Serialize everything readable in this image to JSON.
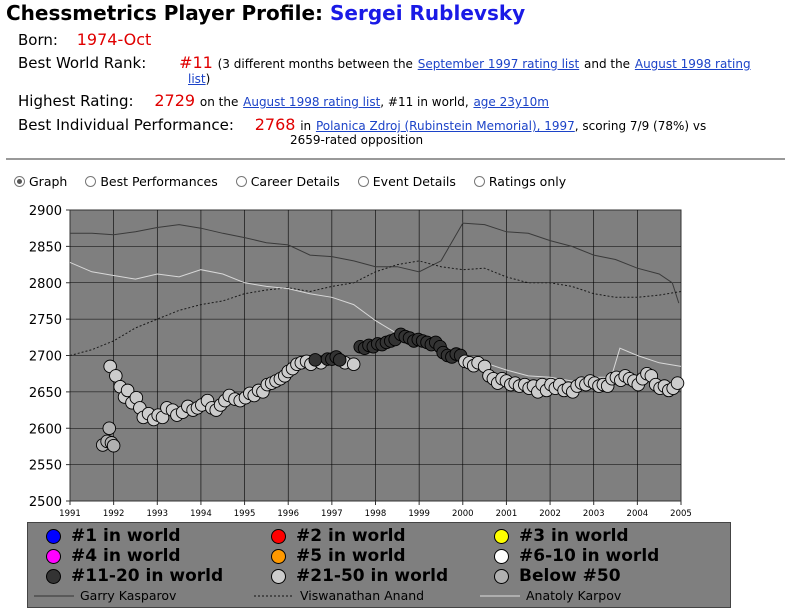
{
  "header": {
    "title_prefix": "Chessmetrics Player Profile:",
    "player_name": "Sergei Rublevsky"
  },
  "born": {
    "label": "Born:",
    "value": "1974-Oct"
  },
  "best_world_rank": {
    "label": "Best World Rank:",
    "value": "#11",
    "text1": "(3 different months between the",
    "link1": "September 1997 rating list",
    "text2": "and the",
    "link2a": "August 1998 rating",
    "link2b": "list",
    "text3": ")"
  },
  "highest_rating": {
    "label": "Highest Rating:",
    "value": "2729",
    "text1": "on the",
    "link1": "August 1998 rating list",
    "text2": ", #11 in world,",
    "link2": "age 23y10m"
  },
  "best_performance": {
    "label": "Best Individual Performance:",
    "value": "2768",
    "text1": "in",
    "link1": "Polanica Zdroj (Rubinstein Memorial), 1997",
    "text2": ", scoring 7/9 (78%) vs",
    "text3": "2659-rated opposition"
  },
  "tabs": [
    {
      "label": "Graph",
      "selected": true
    },
    {
      "label": "Best Performances",
      "selected": false
    },
    {
      "label": "Career Details",
      "selected": false
    },
    {
      "label": "Event Details",
      "selected": false
    },
    {
      "label": "Ratings only",
      "selected": false
    }
  ],
  "chart_data": {
    "type": "scatter",
    "ylim": [
      2500,
      2900
    ],
    "xlim": [
      1991,
      2005
    ],
    "y_ticks": [
      "2500",
      "2550",
      "2600",
      "2650",
      "2700",
      "2750",
      "2800",
      "2850",
      "2900"
    ],
    "x_ticks": [
      "1991",
      "1992",
      "1993",
      "1994",
      "1995",
      "1996",
      "1997",
      "1998",
      "1999",
      "2000",
      "2001",
      "2002",
      "2003",
      "2004",
      "2005"
    ],
    "plot_bg": "#7f7f7f",
    "grid": true,
    "points": [
      {
        "x": 1991.75,
        "y": 2577,
        "cat": "below50"
      },
      {
        "x": 1991.85,
        "y": 2582,
        "cat": "below50"
      },
      {
        "x": 1991.95,
        "y": 2580,
        "cat": "below50"
      },
      {
        "x": 1991.9,
        "y": 2600,
        "cat": "below50"
      },
      {
        "x": 1992.0,
        "y": 2576,
        "cat": "below50"
      },
      {
        "x": 1991.92,
        "y": 2685,
        "cat": "r21_50"
      },
      {
        "x": 1992.05,
        "y": 2672,
        "cat": "r21_50"
      },
      {
        "x": 1992.15,
        "y": 2657,
        "cat": "r21_50"
      },
      {
        "x": 1992.25,
        "y": 2643,
        "cat": "r21_50"
      },
      {
        "x": 1992.32,
        "y": 2652,
        "cat": "r21_50"
      },
      {
        "x": 1992.42,
        "y": 2635,
        "cat": "r21_50"
      },
      {
        "x": 1992.52,
        "y": 2642,
        "cat": "r21_50"
      },
      {
        "x": 1992.6,
        "y": 2628,
        "cat": "r21_50"
      },
      {
        "x": 1992.68,
        "y": 2615,
        "cat": "r21_50"
      },
      {
        "x": 1992.8,
        "y": 2620,
        "cat": "r21_50"
      },
      {
        "x": 1992.92,
        "y": 2612,
        "cat": "r21_50"
      },
      {
        "x": 1993.02,
        "y": 2618,
        "cat": "r21_50"
      },
      {
        "x": 1993.12,
        "y": 2615,
        "cat": "r21_50"
      },
      {
        "x": 1993.22,
        "y": 2628,
        "cat": "r21_50"
      },
      {
        "x": 1993.35,
        "y": 2625,
        "cat": "r21_50"
      },
      {
        "x": 1993.45,
        "y": 2618,
        "cat": "r21_50"
      },
      {
        "x": 1993.58,
        "y": 2622,
        "cat": "r21_50"
      },
      {
        "x": 1993.7,
        "y": 2630,
        "cat": "r21_50"
      },
      {
        "x": 1993.82,
        "y": 2625,
        "cat": "r21_50"
      },
      {
        "x": 1993.92,
        "y": 2628,
        "cat": "r21_50"
      },
      {
        "x": 1994.02,
        "y": 2632,
        "cat": "r21_50"
      },
      {
        "x": 1994.15,
        "y": 2638,
        "cat": "r21_50"
      },
      {
        "x": 1994.25,
        "y": 2628,
        "cat": "r21_50"
      },
      {
        "x": 1994.35,
        "y": 2625,
        "cat": "r21_50"
      },
      {
        "x": 1994.45,
        "y": 2632,
        "cat": "r21_50"
      },
      {
        "x": 1994.55,
        "y": 2638,
        "cat": "r21_50"
      },
      {
        "x": 1994.65,
        "y": 2645,
        "cat": "r21_50"
      },
      {
        "x": 1994.78,
        "y": 2640,
        "cat": "r21_50"
      },
      {
        "x": 1994.9,
        "y": 2638,
        "cat": "r21_50"
      },
      {
        "x": 1995.02,
        "y": 2642,
        "cat": "r21_50"
      },
      {
        "x": 1995.12,
        "y": 2648,
        "cat": "r21_50"
      },
      {
        "x": 1995.22,
        "y": 2645,
        "cat": "r21_50"
      },
      {
        "x": 1995.32,
        "y": 2652,
        "cat": "r21_50"
      },
      {
        "x": 1995.42,
        "y": 2650,
        "cat": "r21_50"
      },
      {
        "x": 1995.52,
        "y": 2660,
        "cat": "r21_50"
      },
      {
        "x": 1995.62,
        "y": 2662,
        "cat": "r21_50"
      },
      {
        "x": 1995.72,
        "y": 2665,
        "cat": "r21_50"
      },
      {
        "x": 1995.82,
        "y": 2668,
        "cat": "r21_50"
      },
      {
        "x": 1995.92,
        "y": 2672,
        "cat": "r21_50"
      },
      {
        "x": 1996.0,
        "y": 2678,
        "cat": "r21_50"
      },
      {
        "x": 1996.1,
        "y": 2682,
        "cat": "r21_50"
      },
      {
        "x": 1996.2,
        "y": 2688,
        "cat": "r21_50"
      },
      {
        "x": 1996.3,
        "y": 2690,
        "cat": "r21_50"
      },
      {
        "x": 1996.42,
        "y": 2692,
        "cat": "r21_50"
      },
      {
        "x": 1996.52,
        "y": 2688,
        "cat": "r21_50"
      },
      {
        "x": 1996.75,
        "y": 2690,
        "cat": "r21_50"
      },
      {
        "x": 1997.3,
        "y": 2690,
        "cat": "r21_50"
      },
      {
        "x": 1997.5,
        "y": 2688,
        "cat": "r21_50"
      },
      {
        "x": 1996.62,
        "y": 2694,
        "cat": "r11_20"
      },
      {
        "x": 1996.9,
        "y": 2695,
        "cat": "r11_20"
      },
      {
        "x": 1997.0,
        "y": 2695,
        "cat": "r11_20"
      },
      {
        "x": 1997.1,
        "y": 2698,
        "cat": "r11_20"
      },
      {
        "x": 1997.18,
        "y": 2694,
        "cat": "r11_20"
      },
      {
        "x": 1997.65,
        "y": 2712,
        "cat": "r11_20"
      },
      {
        "x": 1997.75,
        "y": 2710,
        "cat": "r11_20"
      },
      {
        "x": 1997.85,
        "y": 2714,
        "cat": "r11_20"
      },
      {
        "x": 1997.95,
        "y": 2712,
        "cat": "r11_20"
      },
      {
        "x": 1998.05,
        "y": 2716,
        "cat": "r11_20"
      },
      {
        "x": 1998.15,
        "y": 2715,
        "cat": "r11_20"
      },
      {
        "x": 1998.25,
        "y": 2718,
        "cat": "r11_20"
      },
      {
        "x": 1998.35,
        "y": 2720,
        "cat": "r11_20"
      },
      {
        "x": 1998.45,
        "y": 2722,
        "cat": "r11_20"
      },
      {
        "x": 1998.58,
        "y": 2729,
        "cat": "r11_20"
      },
      {
        "x": 1998.68,
        "y": 2726,
        "cat": "r11_20"
      },
      {
        "x": 1998.78,
        "y": 2724,
        "cat": "r11_20"
      },
      {
        "x": 1998.88,
        "y": 2720,
        "cat": "r11_20"
      },
      {
        "x": 1998.98,
        "y": 2722,
        "cat": "r11_20"
      },
      {
        "x": 1999.08,
        "y": 2720,
        "cat": "r11_20"
      },
      {
        "x": 1999.18,
        "y": 2718,
        "cat": "r11_20"
      },
      {
        "x": 1999.28,
        "y": 2715,
        "cat": "r11_20"
      },
      {
        "x": 1999.38,
        "y": 2718,
        "cat": "r11_20"
      },
      {
        "x": 1999.48,
        "y": 2712,
        "cat": "r11_20"
      },
      {
        "x": 1999.55,
        "y": 2704,
        "cat": "r11_20"
      },
      {
        "x": 1999.65,
        "y": 2700,
        "cat": "r11_20"
      },
      {
        "x": 1999.75,
        "y": 2698,
        "cat": "r11_20"
      },
      {
        "x": 1999.85,
        "y": 2702,
        "cat": "r11_20"
      },
      {
        "x": 1999.95,
        "y": 2700,
        "cat": "r11_20"
      },
      {
        "x": 2000.05,
        "y": 2692,
        "cat": "r21_50"
      },
      {
        "x": 2000.15,
        "y": 2690,
        "cat": "r21_50"
      },
      {
        "x": 2000.25,
        "y": 2686,
        "cat": "r21_50"
      },
      {
        "x": 2000.35,
        "y": 2690,
        "cat": "r21_50"
      },
      {
        "x": 2000.5,
        "y": 2685,
        "cat": "r21_50"
      },
      {
        "x": 2000.6,
        "y": 2672,
        "cat": "r21_50"
      },
      {
        "x": 2000.7,
        "y": 2668,
        "cat": "r21_50"
      },
      {
        "x": 2000.8,
        "y": 2662,
        "cat": "r21_50"
      },
      {
        "x": 2000.9,
        "y": 2668,
        "cat": "r21_50"
      },
      {
        "x": 2001.0,
        "y": 2665,
        "cat": "r21_50"
      },
      {
        "x": 2001.1,
        "y": 2660,
        "cat": "r21_50"
      },
      {
        "x": 2001.2,
        "y": 2662,
        "cat": "r21_50"
      },
      {
        "x": 2001.3,
        "y": 2658,
        "cat": "r21_50"
      },
      {
        "x": 2001.42,
        "y": 2660,
        "cat": "r21_50"
      },
      {
        "x": 2001.52,
        "y": 2655,
        "cat": "r21_50"
      },
      {
        "x": 2001.62,
        "y": 2658,
        "cat": "r21_50"
      },
      {
        "x": 2001.72,
        "y": 2650,
        "cat": "r21_50"
      },
      {
        "x": 2001.82,
        "y": 2660,
        "cat": "r21_50"
      },
      {
        "x": 2001.92,
        "y": 2652,
        "cat": "r21_50"
      },
      {
        "x": 2002.02,
        "y": 2660,
        "cat": "r21_50"
      },
      {
        "x": 2002.12,
        "y": 2655,
        "cat": "r21_50"
      },
      {
        "x": 2002.22,
        "y": 2660,
        "cat": "r21_50"
      },
      {
        "x": 2002.32,
        "y": 2652,
        "cat": "r21_50"
      },
      {
        "x": 2002.42,
        "y": 2655,
        "cat": "r21_50"
      },
      {
        "x": 2002.52,
        "y": 2650,
        "cat": "r21_50"
      },
      {
        "x": 2002.62,
        "y": 2658,
        "cat": "r21_50"
      },
      {
        "x": 2002.72,
        "y": 2662,
        "cat": "r21_50"
      },
      {
        "x": 2002.82,
        "y": 2660,
        "cat": "r21_50"
      },
      {
        "x": 2002.92,
        "y": 2665,
        "cat": "r21_50"
      },
      {
        "x": 2003.02,
        "y": 2662,
        "cat": "r21_50"
      },
      {
        "x": 2003.12,
        "y": 2658,
        "cat": "r21_50"
      },
      {
        "x": 2003.22,
        "y": 2660,
        "cat": "r21_50"
      },
      {
        "x": 2003.32,
        "y": 2658,
        "cat": "r21_50"
      },
      {
        "x": 2003.42,
        "y": 2668,
        "cat": "r21_50"
      },
      {
        "x": 2003.52,
        "y": 2670,
        "cat": "r21_50"
      },
      {
        "x": 2003.62,
        "y": 2666,
        "cat": "r21_50"
      },
      {
        "x": 2003.72,
        "y": 2672,
        "cat": "r21_50"
      },
      {
        "x": 2003.82,
        "y": 2668,
        "cat": "r21_50"
      },
      {
        "x": 2003.92,
        "y": 2665,
        "cat": "r21_50"
      },
      {
        "x": 2004.02,
        "y": 2660,
        "cat": "r21_50"
      },
      {
        "x": 2004.12,
        "y": 2668,
        "cat": "r21_50"
      },
      {
        "x": 2004.22,
        "y": 2675,
        "cat": "r21_50"
      },
      {
        "x": 2004.32,
        "y": 2672,
        "cat": "r21_50"
      },
      {
        "x": 2004.42,
        "y": 2660,
        "cat": "r21_50"
      },
      {
        "x": 2004.52,
        "y": 2655,
        "cat": "r21_50"
      },
      {
        "x": 2004.62,
        "y": 2658,
        "cat": "r21_50"
      },
      {
        "x": 2004.72,
        "y": 2652,
        "cat": "r21_50"
      },
      {
        "x": 2004.82,
        "y": 2655,
        "cat": "r21_50"
      },
      {
        "x": 2004.92,
        "y": 2662,
        "cat": "r21_50"
      }
    ],
    "reference_lines": [
      {
        "name": "Garry Kasparov",
        "style": "solid",
        "color": "#3a3a3a",
        "x": [
          1991.0,
          1991.5,
          1992.0,
          1992.5,
          1993.0,
          1993.5,
          1994.0,
          1994.5,
          1995.0,
          1995.5,
          1996.0,
          1996.5,
          1997.0,
          1997.5,
          1998.0,
          1998.5,
          1999.0,
          1999.5,
          2000.0,
          2000.5,
          2001.0,
          2001.5,
          2002.0,
          2002.5,
          2003.0,
          2003.5,
          2004.0,
          2004.5,
          2004.8,
          2004.95
        ],
        "y": [
          2868,
          2868,
          2866,
          2870,
          2876,
          2880,
          2875,
          2868,
          2862,
          2855,
          2852,
          2838,
          2836,
          2830,
          2822,
          2822,
          2815,
          2830,
          2882,
          2880,
          2870,
          2868,
          2858,
          2850,
          2838,
          2832,
          2820,
          2812,
          2800,
          2772
        ]
      },
      {
        "name": "Viswanathan Anand",
        "style": "dotted",
        "color": "#1a1a1a",
        "x": [
          1991.0,
          1991.5,
          1992.0,
          1992.5,
          1993.0,
          1993.5,
          1994.0,
          1994.5,
          1995.0,
          1995.5,
          1996.0,
          1996.5,
          1997.0,
          1997.5,
          1998.0,
          1998.5,
          1999.0,
          1999.5,
          2000.0,
          2000.5,
          2001.0,
          2001.5,
          2002.0,
          2002.5,
          2003.0,
          2003.5,
          2004.0,
          2004.5,
          2005.0
        ],
        "y": [
          2700,
          2708,
          2720,
          2738,
          2750,
          2762,
          2770,
          2775,
          2785,
          2790,
          2793,
          2788,
          2795,
          2800,
          2815,
          2825,
          2830,
          2822,
          2818,
          2820,
          2808,
          2800,
          2800,
          2795,
          2785,
          2780,
          2780,
          2783,
          2788
        ]
      },
      {
        "name": "Anatoly Karpov",
        "style": "solid",
        "color": "#d8d8d8",
        "x": [
          1991.0,
          1991.5,
          1992.0,
          1992.5,
          1993.0,
          1993.5,
          1994.0,
          1994.5,
          1995.0,
          1995.5,
          1996.0,
          1996.5,
          1997.0,
          1997.5,
          1998.0,
          1998.5,
          1999.0,
          1999.5,
          2000.0,
          2000.5,
          2001.0,
          2001.5,
          2002.0,
          2002.5,
          2003.0,
          2003.4,
          2003.6,
          2004.0,
          2004.5,
          2005.0
        ],
        "y": [
          2828,
          2815,
          2810,
          2805,
          2812,
          2808,
          2818,
          2812,
          2800,
          2795,
          2792,
          2785,
          2780,
          2770,
          2748,
          2730,
          2715,
          2708,
          2700,
          2690,
          2680,
          2672,
          2670,
          2665,
          2670,
          2670,
          2710,
          2700,
          2690,
          2685
        ]
      }
    ]
  },
  "legend": {
    "categories": [
      {
        "label": "#1 in world",
        "color": "#0000ff"
      },
      {
        "label": "#2 in world",
        "color": "#ff0000"
      },
      {
        "label": "#3 in world",
        "color": "#ffff00"
      },
      {
        "label": "#4 in world",
        "color": "#ff00ff"
      },
      {
        "label": "#5 in world",
        "color": "#ff9900"
      },
      {
        "label": "#6-10 in world",
        "color": "#ffffff"
      },
      {
        "label": "#11-20 in world",
        "color": "#333333"
      },
      {
        "label": "#21-50 in world",
        "color": "#cccccc"
      },
      {
        "label": "Below #50",
        "color": "#b0b0b0"
      }
    ],
    "lines": [
      {
        "label": "Garry Kasparov",
        "style": "solid"
      },
      {
        "label": "Viswanathan Anand",
        "style": "dotted"
      },
      {
        "label": "Anatoly Karpov",
        "style": "solid"
      }
    ]
  },
  "colors": {
    "title_name": "#1a1ae6",
    "value_red": "#e00000",
    "link": "#1c43c8",
    "plot_bg": "#7f7f7f",
    "below50_fill": "#b0b0b0",
    "r21_50_fill": "#cccccc",
    "r11_20_fill": "#333333"
  }
}
